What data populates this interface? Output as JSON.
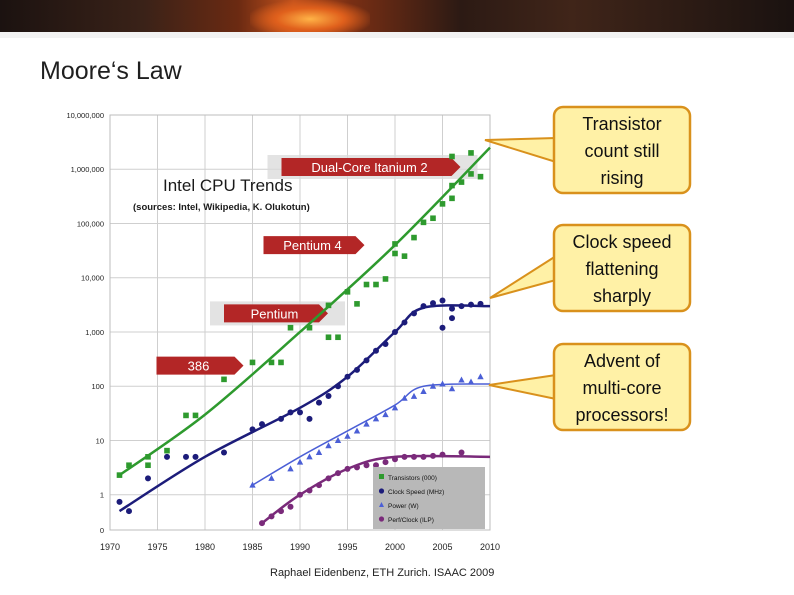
{
  "slide": {
    "title": "Moore‘s Law",
    "footer": "Raphael Eidenbenz, ETH Zurich. ISAAC 2009"
  },
  "callouts": [
    {
      "lines": [
        "Transistor",
        "count still",
        "rising"
      ],
      "target": "transistors"
    },
    {
      "lines": [
        "Clock speed",
        "flattening",
        "sharply"
      ],
      "target": "clock"
    },
    {
      "lines": [
        "Advent of",
        "multi-core",
        "processors!"
      ],
      "target": "perfclock"
    }
  ],
  "colors": {
    "transistors": "#2e9a2e",
    "clock": "#1c1c7a",
    "power": "#4b5fd6",
    "perfclock": "#7a2a7a",
    "callout_fill": "#fff1a6",
    "callout_border": "#d9911c",
    "arrow_red": "#b32626"
  },
  "chart_data": {
    "type": "scatter",
    "title": "Intel CPU Trends",
    "subtitle": "(sources: Intel, Wikipedia, K. Olukotun)",
    "xlim": [
      1970,
      2010
    ],
    "ylim": [
      0,
      10000000
    ],
    "yscale": "log",
    "x_ticks": [
      "1970",
      "1975",
      "1980",
      "1985",
      "1990",
      "1995",
      "2000",
      "2005",
      "2010"
    ],
    "y_ticks": [
      "0",
      "1",
      "10",
      "100",
      "1,000",
      "10,000",
      "100,000",
      "1,000,000",
      "10,000,000"
    ],
    "grid": true,
    "legend_position": "bottom-right",
    "legend": [
      "Transistors (000)",
      "Clock Speed (MHz)",
      "Power (W)",
      "Perf/Clock (ILP)"
    ],
    "annotations": [
      {
        "label": "Dual-Core Itanium 2",
        "x": 1997,
        "y": 1100000
      },
      {
        "label": "Pentium 4",
        "x": 1991,
        "y": 40000
      },
      {
        "label": "Pentium",
        "x": 1987,
        "y": 2200
      },
      {
        "label": "386",
        "x": 1979,
        "y": 240
      }
    ],
    "series": [
      {
        "name": "Transistors (000)",
        "marker": "square",
        "points": [
          [
            1971,
            2.3
          ],
          [
            1972,
            3.5
          ],
          [
            1974,
            3.5
          ],
          [
            1974,
            5
          ],
          [
            1976,
            6.5
          ],
          [
            1978,
            29
          ],
          [
            1979,
            29
          ],
          [
            1982,
            134
          ],
          [
            1985,
            275
          ],
          [
            1987,
            275
          ],
          [
            1988,
            275
          ],
          [
            1989,
            1200
          ],
          [
            1991,
            1200
          ],
          [
            1993,
            3100
          ],
          [
            1993,
            800
          ],
          [
            1994,
            800
          ],
          [
            1995,
            5500
          ],
          [
            1996,
            3300
          ],
          [
            1997,
            7500
          ],
          [
            1998,
            7500
          ],
          [
            1999,
            9500
          ],
          [
            2000,
            28000
          ],
          [
            2000,
            42000
          ],
          [
            2001,
            25000
          ],
          [
            2002,
            55000
          ],
          [
            2003,
            105000
          ],
          [
            2004,
            125000
          ],
          [
            2005,
            230000
          ],
          [
            2006,
            291000
          ],
          [
            2006,
            500000
          ],
          [
            2007,
            580000
          ],
          [
            2008,
            820000
          ],
          [
            2009,
            730000
          ],
          [
            2006,
            1720000
          ],
          [
            2008,
            2000000
          ]
        ],
        "trend": [
          [
            1971,
            2.3
          ],
          [
            1980,
            30
          ],
          [
            1990,
            1000
          ],
          [
            2000,
            40000
          ],
          [
            2010,
            2500000
          ]
        ]
      },
      {
        "name": "Clock Speed (MHz)",
        "marker": "circle",
        "points": [
          [
            1971,
            0.74
          ],
          [
            1972,
            0.5
          ],
          [
            1974,
            2
          ],
          [
            1976,
            5
          ],
          [
            1978,
            5
          ],
          [
            1979,
            5
          ],
          [
            1982,
            6
          ],
          [
            1985,
            16
          ],
          [
            1986,
            20
          ],
          [
            1988,
            25
          ],
          [
            1989,
            33
          ],
          [
            1990,
            33
          ],
          [
            1991,
            25
          ],
          [
            1992,
            50
          ],
          [
            1993,
            66
          ],
          [
            1994,
            100
          ],
          [
            1995,
            150
          ],
          [
            1996,
            200
          ],
          [
            1997,
            300
          ],
          [
            1998,
            450
          ],
          [
            1999,
            600
          ],
          [
            2000,
            1000
          ],
          [
            2001,
            1500
          ],
          [
            2002,
            2200
          ],
          [
            2003,
            3000
          ],
          [
            2004,
            3400
          ],
          [
            2005,
            3800
          ],
          [
            2006,
            2700
          ],
          [
            2007,
            3000
          ],
          [
            2008,
            3200
          ],
          [
            2009,
            3300
          ],
          [
            2006,
            1800
          ],
          [
            2005,
            1200
          ]
        ],
        "trend": [
          [
            1971,
            0.5
          ],
          [
            1980,
            5
          ],
          [
            1990,
            40
          ],
          [
            1995,
            150
          ],
          [
            2000,
            1000
          ],
          [
            2003,
            2800
          ],
          [
            2010,
            3000
          ]
        ]
      },
      {
        "name": "Power (W)",
        "marker": "triangle",
        "points": [
          [
            1985,
            1.5
          ],
          [
            1987,
            2
          ],
          [
            1989,
            3
          ],
          [
            1990,
            4
          ],
          [
            1991,
            5
          ],
          [
            1992,
            6
          ],
          [
            1993,
            8
          ],
          [
            1994,
            10
          ],
          [
            1995,
            12
          ],
          [
            1996,
            15
          ],
          [
            1997,
            20
          ],
          [
            1998,
            25
          ],
          [
            1999,
            30
          ],
          [
            2000,
            40
          ],
          [
            2001,
            60
          ],
          [
            2002,
            65
          ],
          [
            2003,
            80
          ],
          [
            2004,
            100
          ],
          [
            2005,
            110
          ],
          [
            2006,
            90
          ],
          [
            2007,
            130
          ],
          [
            2008,
            120
          ],
          [
            2009,
            150
          ]
        ],
        "trend": [
          [
            1985,
            1.5
          ],
          [
            1990,
            5
          ],
          [
            1995,
            15
          ],
          [
            2000,
            45
          ],
          [
            2003,
            100
          ],
          [
            2010,
            110
          ]
        ]
      },
      {
        "name": "Perf/Clock (ILP)",
        "marker": "circle",
        "points": [
          [
            1986,
            0.3
          ],
          [
            1987,
            0.4
          ],
          [
            1988,
            0.5
          ],
          [
            1989,
            0.6
          ],
          [
            1990,
            1
          ],
          [
            1991,
            1.2
          ],
          [
            1992,
            1.5
          ],
          [
            1993,
            2
          ],
          [
            1994,
            2.5
          ],
          [
            1995,
            3
          ],
          [
            1996,
            3.2
          ],
          [
            1997,
            3.5
          ],
          [
            1998,
            3.5
          ],
          [
            1999,
            4
          ],
          [
            2000,
            4.5
          ],
          [
            2001,
            5
          ],
          [
            2002,
            5
          ],
          [
            2003,
            5
          ],
          [
            2004,
            5.2
          ],
          [
            2005,
            5.5
          ],
          [
            2007,
            6
          ]
        ],
        "trend": [
          [
            1986,
            0.3
          ],
          [
            1990,
            1
          ],
          [
            1995,
            3
          ],
          [
            2000,
            5
          ],
          [
            2010,
            5
          ]
        ]
      }
    ]
  }
}
